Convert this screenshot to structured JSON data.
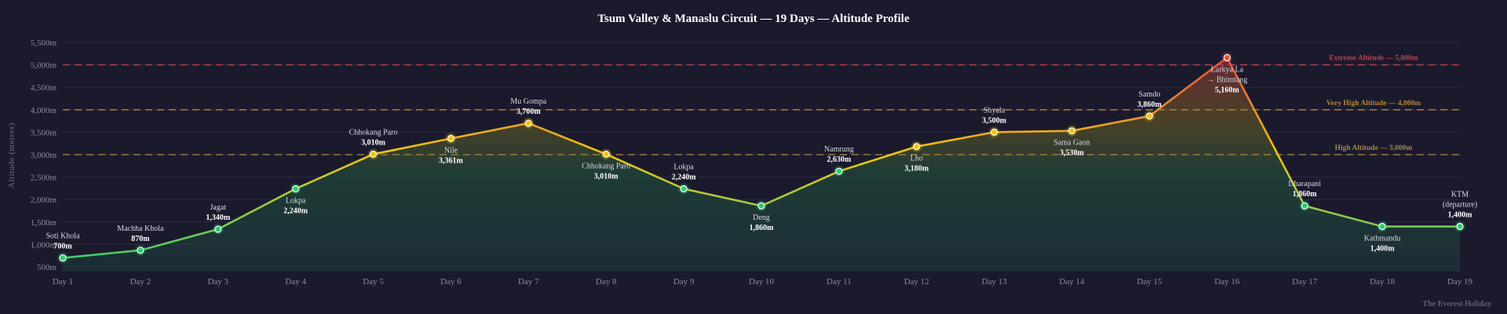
{
  "chart_data": {
    "type": "line",
    "title": "Tsum Valley & Manaslu Circuit — 19 Days — Altitude Profile",
    "xlabel": "",
    "ylabel": "Altitude (metres)",
    "ylim": [
      500,
      5500
    ],
    "yticks": [
      "500m",
      "1,000m",
      "1,500m",
      "2,000m",
      "2,500m",
      "3,000m",
      "3,500m",
      "4,000m",
      "4,500m",
      "5,000m",
      "5,500m"
    ],
    "ytick_values": [
      500,
      1000,
      1500,
      2000,
      2500,
      3000,
      3500,
      4000,
      4500,
      5000,
      5500
    ],
    "grid": true,
    "categories": [
      "Day 1",
      "Day 2",
      "Day 3",
      "Day 4",
      "Day 5",
      "Day 6",
      "Day 7",
      "Day 8",
      "Day 9",
      "Day 10",
      "Day 11",
      "Day 12",
      "Day 13",
      "Day 14",
      "Day 15",
      "Day 16",
      "Day 17",
      "Day 18",
      "Day 19"
    ],
    "values": [
      700,
      870,
      1340,
      2240,
      3010,
      3361,
      3700,
      3010,
      2240,
      1860,
      2630,
      3180,
      3500,
      3530,
      3860,
      5160,
      1860,
      1400,
      1400
    ],
    "point_names": [
      "Soti Khola",
      "Machha Khola",
      "Jagat",
      "Lokpa",
      "Chhokang Paro",
      "Nile",
      "Mu Gompa",
      "Chhokang Paro",
      "Lokpa",
      "Deng",
      "Namrung",
      "Lho",
      "Shyala",
      "Sama Gaon",
      "Samdo",
      "Larkya La\n→ Bhimtang",
      "Dharapani",
      "Kathmandu",
      "KTM\n(departure)"
    ],
    "point_labels": [
      "700m",
      "870m",
      "1,340m",
      "2,240m",
      "3,010m",
      "3,361m",
      "3,700m",
      "3,010m",
      "2,240m",
      "1,860m",
      "2,630m",
      "3,180m",
      "3,500m",
      "3,530m",
      "3,860m",
      "5,160m",
      "1,860m",
      "1,400m",
      "1,400m"
    ],
    "label_positions": [
      "above",
      "above",
      "above",
      "below",
      "above",
      "below",
      "above",
      "below",
      "above",
      "below",
      "above",
      "below",
      "above",
      "below",
      "above",
      "below",
      "above",
      "below",
      "above"
    ],
    "reference_lines": [
      {
        "value": 5000,
        "label": "Extreme Altitude — 5,000m",
        "color": "#c0404f"
      },
      {
        "value": 4000,
        "label": "Very High Altitude — 4,000m",
        "color": "#b8862e"
      },
      {
        "value": 3000,
        "label": "High Altitude — 3,000m",
        "color": "#a88a3e"
      }
    ],
    "colors": {
      "low": "#2ecc71",
      "mid": "#f1c40f",
      "high": "#e67e22",
      "extreme": "#e74c3c"
    },
    "credit": "The Everest Holiday"
  }
}
